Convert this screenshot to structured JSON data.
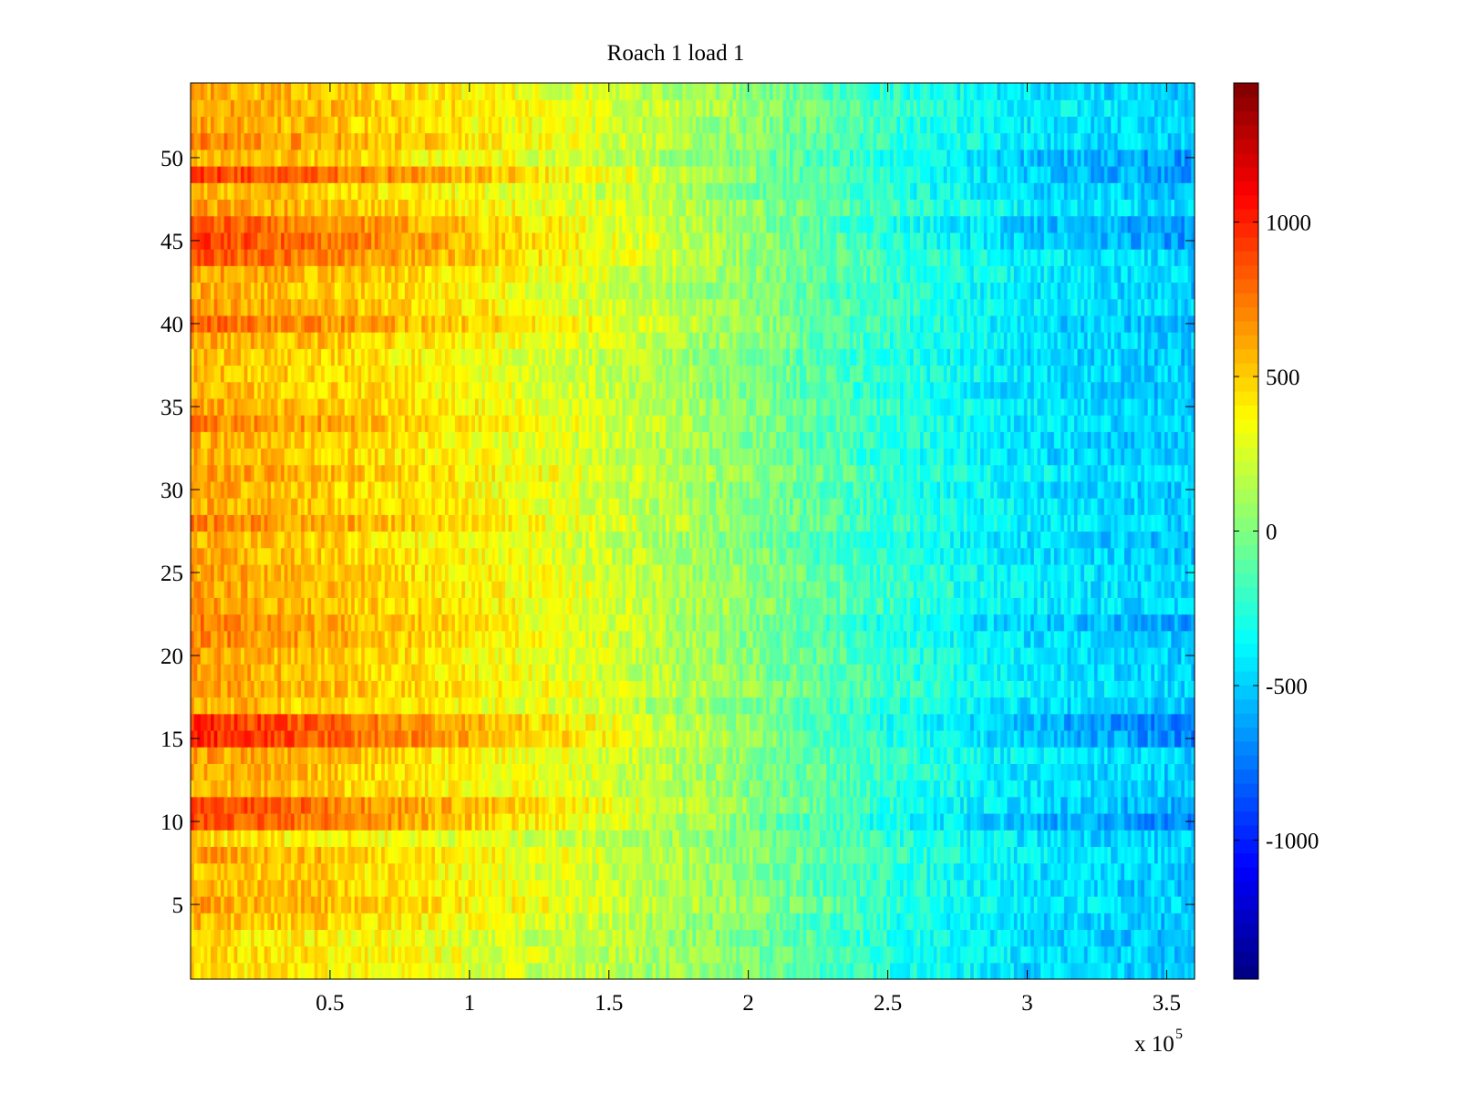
{
  "chart_data": {
    "type": "heatmap",
    "title": "Roach 1 load 1",
    "xlabel": "",
    "ylabel": "",
    "x_multiplier_label": "x 10",
    "x_multiplier_exponent": "5",
    "xlim": [
      0,
      3.6
    ],
    "ylim": [
      0.5,
      54.5
    ],
    "x_ticks": [
      0.5,
      1,
      1.5,
      2,
      2.5,
      3,
      3.5
    ],
    "x_tick_labels": [
      "0.5",
      "1",
      "1.5",
      "2",
      "2.5",
      "3",
      "3.5"
    ],
    "y_ticks": [
      5,
      10,
      15,
      20,
      25,
      30,
      35,
      40,
      45,
      50
    ],
    "y_tick_labels": [
      "5",
      "10",
      "15",
      "20",
      "25",
      "30",
      "35",
      "40",
      "45",
      "50"
    ],
    "rows": 54,
    "colormap": "jet",
    "clim": [
      -1450,
      1450
    ],
    "colorbar": {
      "ticks": [
        -1000,
        -500,
        0,
        500,
        1000
      ],
      "tick_labels": [
        "-1000",
        "-500",
        "0",
        "500",
        "1000"
      ]
    },
    "trend": {
      "description": "values decrease roughly linearly from left to right",
      "x_points": [
        0,
        0.5,
        1.0,
        1.5,
        2.0,
        2.5,
        3.0,
        3.6
      ],
      "base_values": [
        620,
        520,
        380,
        230,
        20,
        -230,
        -420,
        -520
      ]
    },
    "row_offsets": {
      "16": 380,
      "15": 360,
      "10": 320,
      "11": 260,
      "49": 320,
      "45": 260,
      "46": 240,
      "44": 200,
      "40": 140,
      "22": 170,
      "21": 130,
      "34": 110,
      "28": 90,
      "51": 100,
      "9": -160,
      "2": -120,
      "3": -140,
      "1": -120,
      "7": -60,
      "37": -60,
      "38": -40
    },
    "right_row_offsets": {
      "15": -210,
      "16": -200,
      "45": -170,
      "46": -150,
      "10": -150,
      "11": -130,
      "49": -130,
      "50": -120,
      "40": -100,
      "22": -80
    },
    "noise_amplitude": 150,
    "seed": 7
  }
}
